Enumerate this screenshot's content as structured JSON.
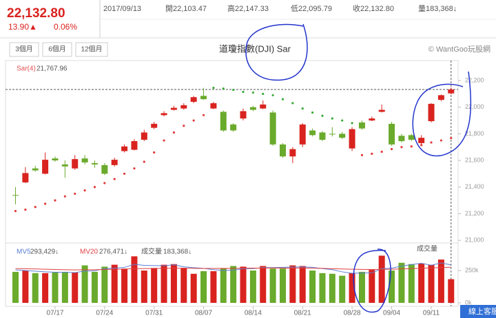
{
  "quote": {
    "price": "22,132.80",
    "change": "13.90▲",
    "percent": "0.06%",
    "date": "2017/09/13",
    "open": "開22,103.47",
    "high": "高22,147.33",
    "low": "低22,095.79",
    "close": "收22,132.80",
    "volume": "量183,368↓"
  },
  "buttons": [
    "3個月",
    "6個月",
    "12個月"
  ],
  "brand": "© WantGoo玩股網",
  "support": "線上客服",
  "chart_data": {
    "type": "candlestick",
    "title": "道瓊指數(DJI) Sar",
    "sar_label": "Sar(4)",
    "sar_value_label": "21,767.96",
    "up_color": "#d9231f",
    "down_color": "#6aaa2c",
    "sar_color_below": "#e03a3a",
    "sar_color_above": "#3aaa3a",
    "categories": [
      null,
      null,
      null,
      null,
      "07/17",
      null,
      null,
      null,
      null,
      "07/24",
      null,
      null,
      null,
      null,
      "07/31",
      null,
      null,
      null,
      null,
      "08/07",
      null,
      null,
      null,
      null,
      "08/14",
      null,
      null,
      null,
      null,
      "08/21",
      null,
      null,
      null,
      null,
      "08/28",
      null,
      null,
      null,
      "09/04",
      null,
      null,
      null,
      "09/11",
      null,
      null
    ],
    "open": [
      21340,
      21435,
      21540,
      21500,
      21615,
      21570,
      21540,
      21615,
      21580,
      21565,
      21565,
      21670,
      21680,
      21755,
      21845,
      21940,
      21980,
      21990,
      22040,
      22085,
      21990,
      21965,
      21870,
      21915,
      22000,
      21990,
      21960,
      21720,
      21630,
      21720,
      21825,
      21810,
      21800,
      21800,
      21690,
      21885,
      21900,
      21965,
      21875,
      21785,
      21790,
      21730,
      21895,
      22055,
      22103.47
    ],
    "high": [
      21400,
      21550,
      21560,
      21660,
      21630,
      21600,
      21640,
      21640,
      21600,
      21580,
      21620,
      21720,
      21760,
      21830,
      21890,
      21970,
      22010,
      22030,
      22085,
      22145,
      22040,
      21975,
      21880,
      21990,
      22010,
      22050,
      21975,
      21730,
      21700,
      21880,
      21840,
      21820,
      21850,
      21815,
      21850,
      21900,
      21930,
      22020,
      21890,
      21800,
      21800,
      21790,
      22030,
      22095,
      22147.33
    ],
    "low": [
      21270,
      21430,
      21515,
      21495,
      21590,
      21470,
      21530,
      21570,
      21545,
      21490,
      21555,
      21660,
      21675,
      21745,
      21835,
      21930,
      21975,
      21980,
      22030,
      22055,
      21985,
      21815,
      21815,
      21900,
      21970,
      21985,
      21710,
      21620,
      21580,
      21700,
      21780,
      21745,
      21780,
      21760,
      21670,
      21830,
      21895,
      21960,
      21710,
      21735,
      21745,
      21715,
      21885,
      22045,
      22095.79
    ],
    "close": [
      21338,
      21505,
      21525,
      21605,
      21600,
      21555,
      21610,
      21585,
      21570,
      21500,
      21605,
      21705,
      21745,
      21810,
      21875,
      21955,
      21995,
      22015,
      22075,
      22060,
      22030,
      21825,
      21825,
      21970,
      21980,
      22020,
      21720,
      21630,
      21685,
      21870,
      21790,
      21755,
      21795,
      21770,
      21835,
      21840,
      21915,
      21980,
      21720,
      21745,
      21755,
      21770,
      22025,
      22090,
      22132.8
    ],
    "sar": [
      21220,
      21230,
      21250,
      21275,
      21300,
      21330,
      21350,
      21375,
      21400,
      21430,
      21460,
      21500,
      21540,
      21590,
      21660,
      21750,
      21810,
      21860,
      21900,
      21940,
      22145,
      22140,
      22130,
      22115,
      22110,
      22100,
      22090,
      22060,
      22030,
      21990,
      21960,
      21935,
      21915,
      21900,
      21880,
      21640,
      21650,
      21665,
      21685,
      21700,
      21705,
      21715,
      21735,
      21750,
      21767.96
    ],
    "ylim": [
      20980,
      22350
    ],
    "yticks": [
      {
        "value": 21000,
        "label": "21,000"
      },
      {
        "value": 21200,
        "label": "21,200"
      },
      {
        "value": 21400,
        "label": "21,400"
      },
      {
        "value": 21600,
        "label": "21,600"
      },
      {
        "value": 21800,
        "label": "21,800"
      },
      {
        "value": 22000,
        "label": "22,000"
      },
      {
        "value": 22200,
        "label": "22,200"
      }
    ],
    "volume": {
      "label": "成交量",
      "legend_label": "成交量",
      "value_label": "183,368↓",
      "values": [
        240000,
        250000,
        230000,
        230000,
        235000,
        240000,
        235000,
        290000,
        240000,
        280000,
        295000,
        265000,
        360000,
        250000,
        270000,
        295000,
        300000,
        270000,
        225000,
        245000,
        245000,
        265000,
        285000,
        280000,
        250000,
        285000,
        265000,
        265000,
        290000,
        285000,
        250000,
        230000,
        225000,
        210000,
        230000,
        240000,
        255000,
        365000,
        250000,
        310000,
        300000,
        305000,
        295000,
        335000,
        183368
      ],
      "ylim": [
        0,
        450000
      ],
      "yticks": [
        {
          "value": 0,
          "label": "0k"
        },
        {
          "value": 250000,
          "label": "250k"
        }
      ],
      "series": [
        {
          "name": "MV5",
          "color": "#5b7fd6",
          "value_label": "293,429↓",
          "values": [
            255000,
            250000,
            245000,
            240000,
            237000,
            237000,
            234000,
            246000,
            248000,
            265000,
            268000,
            274000,
            298000,
            290000,
            288000,
            287000,
            295000,
            279000,
            272000,
            267000,
            257000,
            250000,
            253000,
            264000,
            265000,
            273000,
            273000,
            275000,
            277000,
            278000,
            275000,
            265000,
            257000,
            240000,
            229000,
            231000,
            232000,
            265000,
            268000,
            284000,
            296000,
            306000,
            291000,
            309000,
            293429
          ]
        },
        {
          "name": "MV20",
          "color": "#e04040",
          "value_label": "276,471↓",
          "values": [
            265000,
            264000,
            262000,
            260000,
            258000,
            256000,
            255000,
            256000,
            256000,
            258000,
            260000,
            261000,
            265000,
            265000,
            266000,
            267000,
            268000,
            268000,
            267000,
            266000,
            266000,
            267000,
            266000,
            268000,
            269000,
            269000,
            270000,
            269000,
            269000,
            270000,
            268000,
            267000,
            264000,
            262000,
            260000,
            259000,
            258000,
            259000,
            260000,
            262000,
            265000,
            268000,
            270000,
            273000,
            276471
          ]
        }
      ]
    }
  }
}
